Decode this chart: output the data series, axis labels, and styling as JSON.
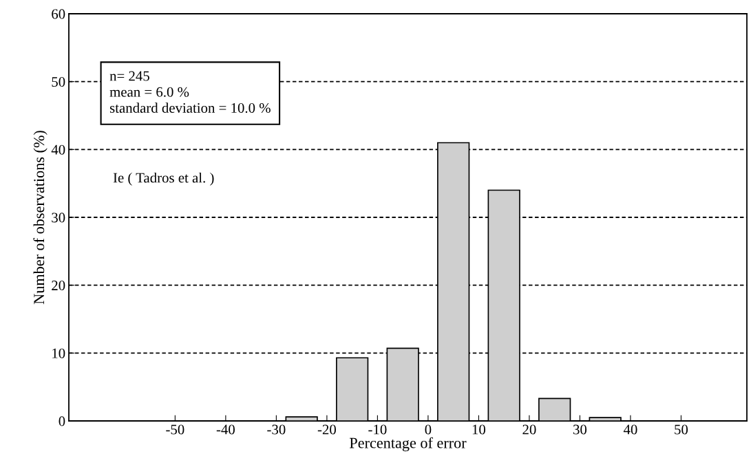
{
  "chart_data": {
    "type": "histogram",
    "xlabel": "Percentage of error",
    "ylabel": "Number of observations (%)",
    "bins": [
      -60,
      -50,
      -40,
      -30,
      -20,
      -10,
      0,
      10,
      20,
      30,
      40,
      50
    ],
    "values": [
      0,
      0,
      0,
      0.6,
      9.3,
      10.7,
      41,
      34,
      3.3,
      0.5,
      0
    ],
    "color": "#cfcfcf",
    "xlim": [
      -71,
      63
    ],
    "xticks": [
      -50,
      -40,
      -30,
      -20,
      -10,
      0,
      10,
      20,
      30,
      40,
      50
    ],
    "ylim": [
      0,
      60
    ],
    "yticks": [
      0,
      10,
      20,
      30,
      40,
      50,
      60
    ],
    "grid": "y",
    "line_style": "dotted",
    "annotations": [
      "n= 245",
      "mean = 6.0 %",
      "standard deviation = 10.0 %",
      "Ie ( Tadros et al. )"
    ]
  }
}
